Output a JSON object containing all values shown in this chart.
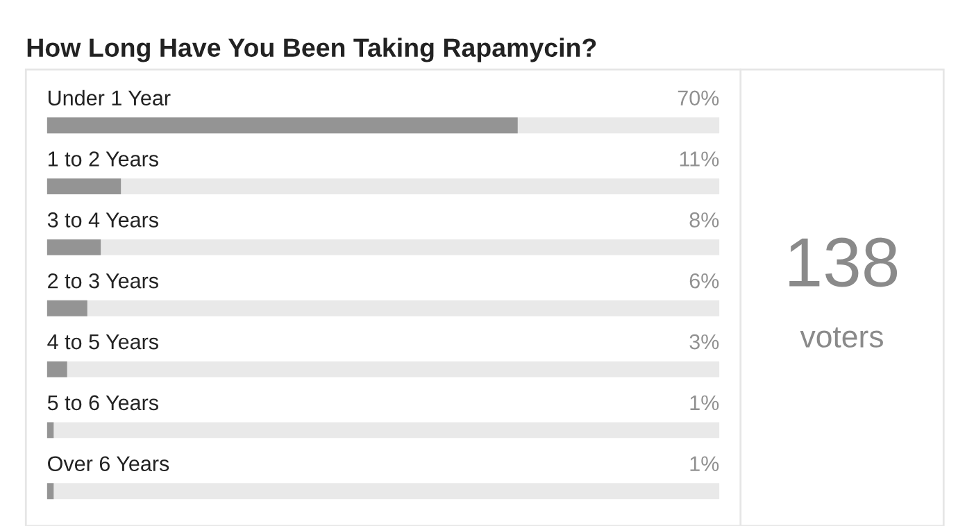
{
  "chart_data": {
    "type": "bar",
    "orientation": "horizontal",
    "title": "How Long Have You Been Taking Rapamycin?",
    "categories": [
      "Under 1 Year",
      "1 to 2 Years",
      "3 to 4 Years",
      "2 to 3 Years",
      "4 to 5 Years",
      "5 to 6 Years",
      "Over 6 Years"
    ],
    "values": [
      70,
      11,
      8,
      6,
      3,
      1,
      1
    ],
    "value_labels": [
      "70%",
      "11%",
      "8%",
      "6%",
      "3%",
      "1%",
      "1%"
    ],
    "color": "#949494",
    "annotations": [
      "138",
      "voters"
    ],
    "legend": false
  }
}
